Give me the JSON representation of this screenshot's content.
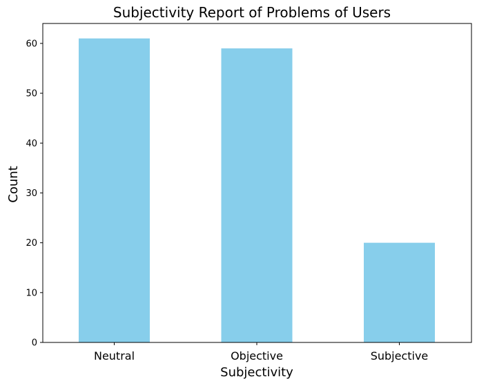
{
  "chart_data": {
    "type": "bar",
    "title": "Subjectivity Report of Problems of Users",
    "xlabel": "Subjectivity",
    "ylabel": "Count",
    "categories": [
      "Neutral",
      "Objective",
      "Subjective"
    ],
    "values": [
      61,
      59,
      20
    ],
    "ylim": [
      0,
      64
    ],
    "yticks": [
      0,
      10,
      20,
      30,
      40,
      50,
      60
    ],
    "bar_color": "#87ceeb",
    "grid": false,
    "legend": "none"
  }
}
